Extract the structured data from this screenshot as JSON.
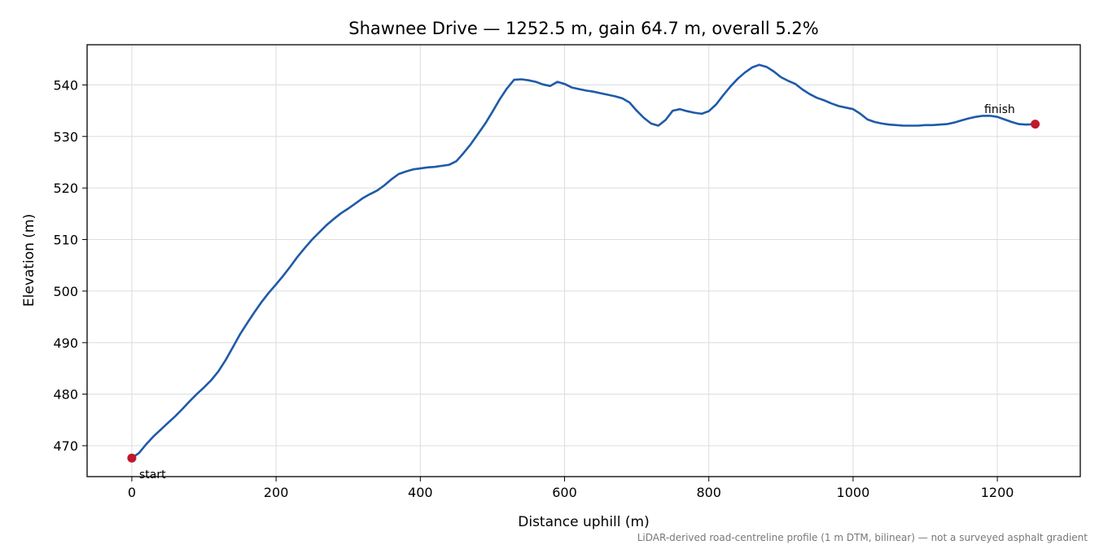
{
  "chart_data": {
    "type": "line",
    "title": "Shawnee Drive — 1252.5 m, gain 64.7 m, overall 5.2%",
    "xlabel": "Distance uphill (m)",
    "ylabel": "Elevation (m)",
    "xlim": [
      -62,
      1315
    ],
    "ylim": [
      464,
      547.8
    ],
    "xticks": [
      0,
      200,
      400,
      600,
      800,
      1000,
      1200
    ],
    "yticks": [
      470,
      480,
      490,
      500,
      510,
      520,
      530,
      540
    ],
    "grid": true,
    "line_color": "#1f5aa8",
    "marker_color": "#c0182a",
    "series": [
      {
        "x": [
          0,
          10,
          20,
          30,
          40,
          50,
          60,
          70,
          80,
          90,
          100,
          110,
          120,
          130,
          140,
          150,
          160,
          170,
          180,
          190,
          200,
          210,
          220,
          230,
          240,
          250,
          260,
          270,
          280,
          290,
          300,
          310,
          320,
          330,
          340,
          350,
          360,
          370,
          380,
          390,
          400,
          410,
          420,
          430,
          440,
          450,
          460,
          470,
          480,
          490,
          500,
          510,
          520,
          530,
          540,
          550,
          560,
          570,
          580,
          590,
          600,
          610,
          620,
          630,
          640,
          650,
          660,
          670,
          680,
          690,
          700,
          710,
          720,
          730,
          740,
          750,
          760,
          770,
          780,
          790,
          800,
          810,
          820,
          830,
          840,
          850,
          860,
          870,
          880,
          890,
          900,
          910,
          920,
          930,
          940,
          950,
          960,
          970,
          980,
          990,
          1000,
          1010,
          1020,
          1030,
          1040,
          1050,
          1060,
          1070,
          1080,
          1090,
          1100,
          1110,
          1120,
          1130,
          1140,
          1150,
          1160,
          1170,
          1180,
          1190,
          1200,
          1210,
          1220,
          1230,
          1240,
          1252.5
        ],
        "y": [
          467.6,
          468.6,
          470.3,
          471.8,
          473.1,
          474.4,
          475.7,
          477.1,
          478.6,
          480.0,
          481.3,
          482.7,
          484.4,
          486.6,
          489.1,
          491.6,
          493.8,
          495.9,
          497.9,
          499.7,
          501.3,
          503.0,
          504.8,
          506.7,
          508.4,
          510.0,
          511.4,
          512.8,
          514.0,
          515.1,
          516.0,
          517.0,
          518.0,
          518.8,
          519.5,
          520.5,
          521.7,
          522.7,
          523.2,
          523.6,
          523.8,
          524.0,
          524.1,
          524.3,
          524.5,
          525.2,
          526.8,
          528.5,
          530.5,
          532.5,
          534.8,
          537.2,
          539.3,
          541.0,
          541.1,
          540.9,
          540.6,
          540.1,
          539.8,
          540.6,
          540.2,
          539.5,
          539.2,
          538.9,
          538.7,
          538.4,
          538.1,
          537.8,
          537.4,
          536.6,
          535.0,
          533.6,
          532.5,
          532.1,
          533.2,
          535.0,
          535.3,
          534.9,
          534.6,
          534.4,
          534.9,
          536.2,
          538.0,
          539.7,
          541.2,
          542.4,
          543.4,
          543.9,
          543.5,
          542.6,
          541.5,
          540.8,
          540.2,
          539.1,
          538.2,
          537.5,
          537.0,
          536.4,
          535.9,
          535.6,
          535.3,
          534.4,
          533.3,
          532.8,
          532.5,
          532.3,
          532.2,
          532.1,
          532.1,
          532.1,
          532.2,
          532.2,
          532.3,
          532.4,
          532.7,
          533.1,
          533.5,
          533.8,
          534.0,
          534.0,
          533.8,
          533.3,
          532.8,
          532.4,
          532.3,
          532.4
        ]
      }
    ],
    "annotations": {
      "start": "start",
      "finish": "finish"
    },
    "footnote": "LiDAR-derived road-centreline profile (1 m DTM, bilinear) — not a surveyed asphalt gradient"
  }
}
